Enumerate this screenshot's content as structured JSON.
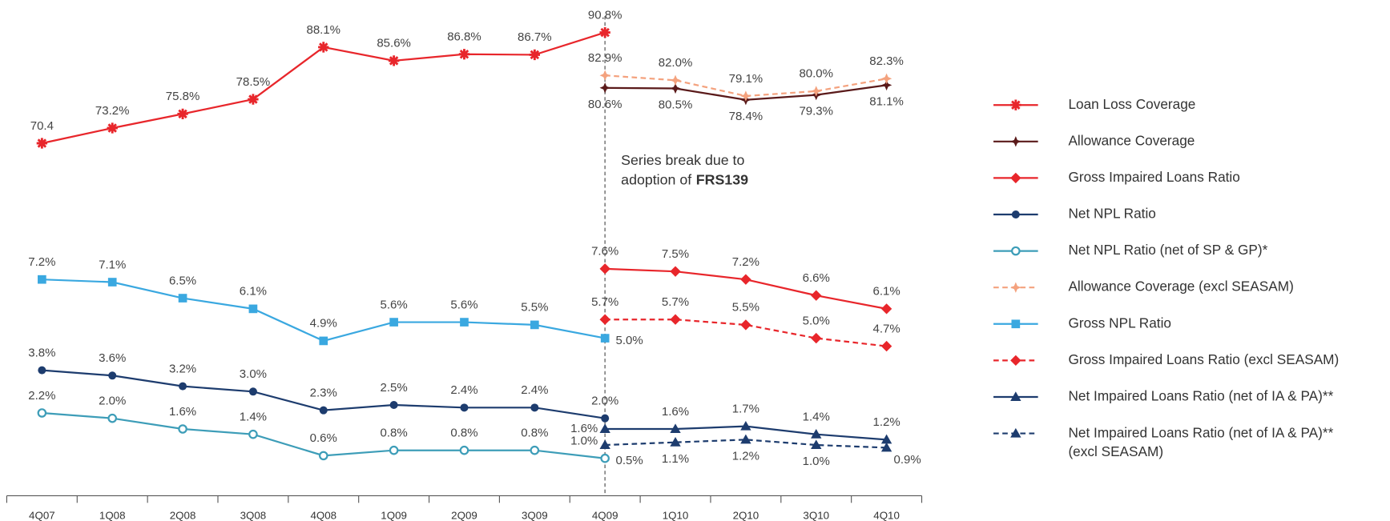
{
  "chart_data": {
    "type": "line",
    "categories": [
      "4Q07",
      "1Q08",
      "2Q08",
      "3Q08",
      "4Q08",
      "1Q09",
      "2Q09",
      "3Q09",
      "4Q09",
      "1Q10",
      "2Q10",
      "3Q10",
      "4Q10"
    ],
    "ylim": [
      0,
      8
    ],
    "y2lim": [
      69,
      92
    ],
    "annotations": [
      "Series break due to",
      "adoption of",
      "FRS139"
    ],
    "series": [
      {
        "name": "Loan Loss Coverage",
        "color": "#e8262b",
        "marker": "asterisk",
        "dashed": false,
        "axis": "y2",
        "values": [
          70.4,
          73.2,
          75.8,
          78.5,
          88.1,
          85.6,
          86.8,
          86.7,
          90.8,
          null,
          null,
          null,
          null
        ],
        "value_labels": [
          "70.4",
          "73.2%",
          "75.8%",
          "78.5%",
          "88.1%",
          "85.6%",
          "86.8%",
          "86.7%",
          "90.8%",
          null,
          null,
          null,
          null
        ]
      },
      {
        "name": "Allowance Coverage",
        "color": "#5a1a1a",
        "marker": "star4",
        "dashed": false,
        "axis": "y2",
        "values": [
          null,
          null,
          null,
          null,
          null,
          null,
          null,
          null,
          80.6,
          80.5,
          78.4,
          79.3,
          81.1
        ],
        "value_labels": [
          null,
          null,
          null,
          null,
          null,
          null,
          null,
          null,
          "80.6%",
          "80.5%",
          "78.4%",
          "79.3%",
          "81.1%"
        ]
      },
      {
        "name": "Gross Impaired Loans Ratio",
        "color": "#e8262b",
        "marker": "diamond",
        "dashed": false,
        "axis": "y",
        "values": [
          null,
          null,
          null,
          null,
          null,
          null,
          null,
          null,
          7.6,
          7.5,
          7.2,
          6.6,
          6.1
        ],
        "value_labels": [
          null,
          null,
          null,
          null,
          null,
          null,
          null,
          null,
          "7.6%",
          "7.5%",
          "7.2%",
          "6.6%",
          "6.1%"
        ]
      },
      {
        "name": "Net NPL Ratio",
        "color": "#1d3c6e",
        "marker": "circle",
        "dashed": false,
        "axis": "y",
        "values": [
          3.8,
          3.6,
          3.2,
          3.0,
          2.3,
          2.5,
          2.4,
          2.4,
          2.0,
          null,
          null,
          null,
          null
        ],
        "value_labels": [
          "3.8%",
          "3.6%",
          "3.2%",
          "3.0%",
          "2.3%",
          "2.5%",
          "2.4%",
          "2.4%",
          "2.0%",
          null,
          null,
          null,
          null
        ]
      },
      {
        "name": "Net NPL Ratio (net of SP & GP)*",
        "color": "#3d9db8",
        "marker": "open-circle",
        "dashed": false,
        "axis": "y",
        "values": [
          2.2,
          2.0,
          1.6,
          1.4,
          0.6,
          0.8,
          0.8,
          0.8,
          0.5,
          null,
          null,
          null,
          null
        ],
        "value_labels": [
          "2.2%",
          "2.0%",
          "1.6%",
          "1.4%",
          "0.6%",
          "0.8%",
          "0.8%",
          "0.8%",
          "0.5%",
          null,
          null,
          null,
          null
        ]
      },
      {
        "name": "Allowance Coverage (excl SEASAM)",
        "color": "#f4a27e",
        "marker": "star4",
        "dashed": true,
        "axis": "y2",
        "values": [
          null,
          null,
          null,
          null,
          null,
          null,
          null,
          null,
          82.9,
          82.0,
          79.1,
          80.0,
          82.3
        ],
        "value_labels": [
          null,
          null,
          null,
          null,
          null,
          null,
          null,
          null,
          "82.9%",
          "82.0%",
          "79.1%",
          "80.0%",
          "82.3%"
        ]
      },
      {
        "name": "Gross NPL Ratio",
        "color": "#3aa8e0",
        "marker": "square",
        "dashed": false,
        "axis": "y",
        "values": [
          7.2,
          7.1,
          6.5,
          6.1,
          4.9,
          5.6,
          5.6,
          5.5,
          5.0,
          null,
          null,
          null,
          null
        ],
        "value_labels": [
          "7.2%",
          "7.1%",
          "6.5%",
          "6.1%",
          "4.9%",
          "5.6%",
          "5.6%",
          "5.5%",
          "5.0%",
          null,
          null,
          null,
          null
        ]
      },
      {
        "name": "Gross Impaired Loans Ratio (excl SEASAM)",
        "color": "#e8262b",
        "marker": "diamond",
        "dashed": true,
        "axis": "y",
        "values": [
          null,
          null,
          null,
          null,
          null,
          null,
          null,
          null,
          5.7,
          5.7,
          5.5,
          5.0,
          4.7
        ],
        "value_labels": [
          null,
          null,
          null,
          null,
          null,
          null,
          null,
          null,
          "5.7%",
          "5.7%",
          "5.5%",
          "5.0%",
          "4.7%"
        ]
      },
      {
        "name": "Net Impaired Loans Ratio (net of IA & PA)**",
        "color": "#1d3c6e",
        "marker": "triangle",
        "dashed": false,
        "axis": "y",
        "values": [
          null,
          null,
          null,
          null,
          null,
          null,
          null,
          null,
          1.6,
          1.6,
          1.7,
          1.4,
          1.2
        ],
        "value_labels": [
          null,
          null,
          null,
          null,
          null,
          null,
          null,
          null,
          "1.6%",
          "1.6%",
          "1.7%",
          "1.4%",
          "1.2%"
        ]
      },
      {
        "name": "Net Impaired Loans Ratio (net of IA & PA)** (excl SEASAM)",
        "color": "#1d3c6e",
        "marker": "triangle",
        "dashed": true,
        "axis": "y",
        "values": [
          null,
          null,
          null,
          null,
          null,
          null,
          null,
          null,
          1.0,
          1.1,
          1.2,
          1.0,
          0.9
        ],
        "value_labels": [
          null,
          null,
          null,
          null,
          null,
          null,
          null,
          null,
          "1.0%",
          "1.1%",
          "1.2%",
          "1.0%",
          "0.9%"
        ]
      }
    ]
  }
}
